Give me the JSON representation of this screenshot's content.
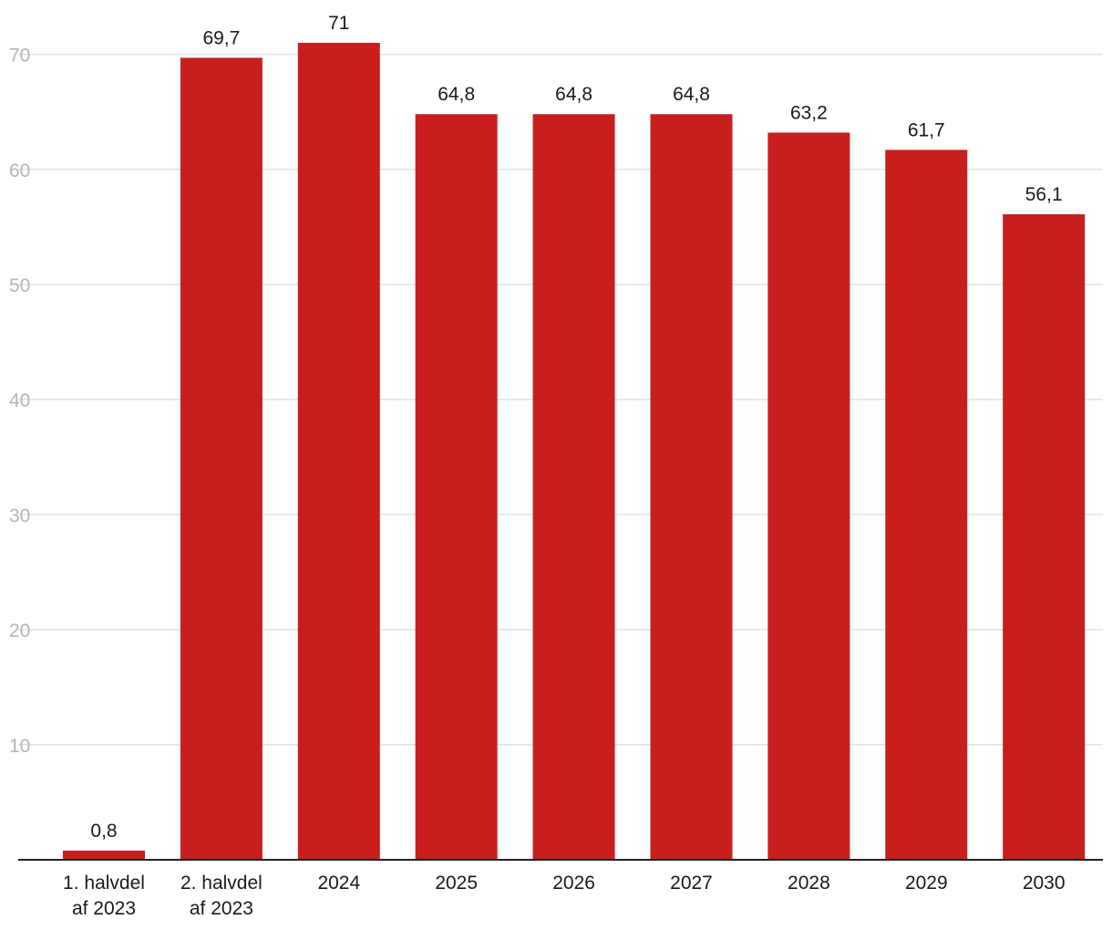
{
  "chart_data": {
    "type": "bar",
    "title": "",
    "xlabel": "",
    "ylabel": "",
    "categories": [
      [
        "1. halvdel",
        "af 2023"
      ],
      [
        "2. halvdel",
        "af 2023"
      ],
      [
        "2024"
      ],
      [
        "2025"
      ],
      [
        "2026"
      ],
      [
        "2027"
      ],
      [
        "2028"
      ],
      [
        "2029"
      ],
      [
        "2030"
      ]
    ],
    "values": [
      0.8,
      69.7,
      71,
      64.8,
      64.8,
      64.8,
      63.2,
      61.7,
      56.1
    ],
    "value_labels": [
      "0,8",
      "69,7",
      "71",
      "64,8",
      "64,8",
      "64,8",
      "63,2",
      "61,7",
      "56,1"
    ],
    "ylim": [
      0,
      70
    ],
    "yticks": [
      10,
      20,
      30,
      40,
      50,
      60,
      70
    ],
    "grid": true,
    "bar_color": "#c81e1e"
  }
}
